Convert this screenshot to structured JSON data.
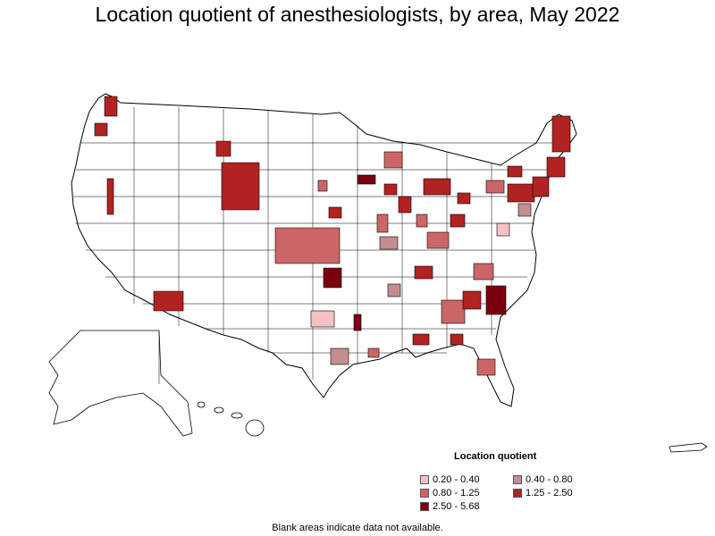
{
  "title": "Location quotient of anesthesiologists, by area, May 2022",
  "legend": {
    "title": "Location quotient",
    "items": [
      {
        "label": "0.20 - 0.40",
        "color": "#f4c2c4"
      },
      {
        "label": "0.40 - 0.80",
        "color": "#c48e8e"
      },
      {
        "label": "0.80 - 1.25",
        "color": "#cc6666"
      },
      {
        "label": "1.25 - 2.50",
        "color": "#b22222"
      },
      {
        "label": "2.50 - 5.68",
        "color": "#7a0010"
      }
    ]
  },
  "footnote": "Blank areas indicate data not available.",
  "colors": {
    "border": "#000000",
    "blank": "#ffffff"
  }
}
